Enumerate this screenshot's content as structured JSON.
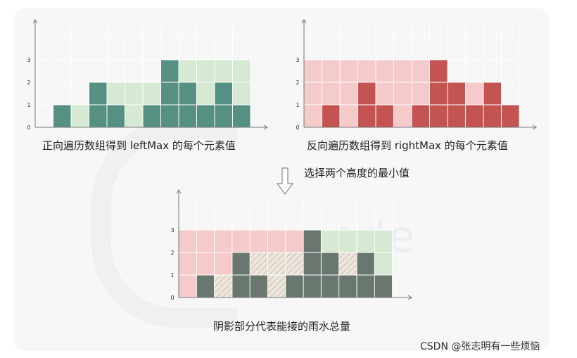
{
  "captions": {
    "left": "正向遍历数组得到 leftMax 的每个元素值",
    "right": "反向遍历数组得到 rightMax 的每个元素值",
    "middle": "选择两个高度的最小值",
    "bottom": "阴影部分代表能接的雨水总量"
  },
  "footer": {
    "credit": "CSDN @张志明有一些烦恼"
  },
  "watermark": {
    "text": "ode"
  },
  "colors": {
    "left_max_fill": "#d6e9d3",
    "left_bar": "#559082",
    "right_max_fill": "#f5caca",
    "right_bar": "#c45451",
    "combined_bar": "#6a776f",
    "water_hatch": "#dcd3c8",
    "axis": "#777777",
    "grid": "#ffffff"
  },
  "chart_data": [
    {
      "type": "bar",
      "name": "leftMax",
      "x": [
        0,
        1,
        2,
        3,
        4,
        5,
        6,
        7,
        8,
        9,
        10,
        11
      ],
      "height": [
        0,
        1,
        0,
        2,
        1,
        0,
        1,
        3,
        2,
        1,
        2,
        1
      ],
      "max": [
        0,
        1,
        1,
        2,
        2,
        2,
        2,
        3,
        3,
        3,
        3,
        3
      ],
      "yticks": [
        "0",
        "1",
        "2",
        "3"
      ]
    },
    {
      "type": "bar",
      "name": "rightMax",
      "x": [
        0,
        1,
        2,
        3,
        4,
        5,
        6,
        7,
        8,
        9,
        10,
        11
      ],
      "height": [
        0,
        1,
        0,
        2,
        1,
        0,
        1,
        3,
        2,
        1,
        2,
        1
      ],
      "max": [
        3,
        3,
        3,
        3,
        3,
        3,
        3,
        3,
        2,
        2,
        2,
        1
      ],
      "yticks": [
        "0",
        "1",
        "2",
        "3"
      ]
    },
    {
      "type": "bar",
      "name": "combined",
      "x": [
        0,
        1,
        2,
        3,
        4,
        5,
        6,
        7,
        8,
        9,
        10,
        11
      ],
      "height": [
        0,
        1,
        0,
        2,
        1,
        0,
        1,
        3,
        2,
        1,
        2,
        1
      ],
      "left_max": [
        0,
        1,
        1,
        2,
        2,
        2,
        2,
        3,
        3,
        3,
        3,
        3
      ],
      "right_max": [
        3,
        3,
        3,
        3,
        3,
        3,
        3,
        3,
        2,
        2,
        2,
        1
      ],
      "water": [
        0,
        0,
        1,
        0,
        1,
        2,
        1,
        0,
        0,
        1,
        0,
        0
      ],
      "yticks": [
        "0",
        "1",
        "2",
        "3"
      ]
    }
  ]
}
